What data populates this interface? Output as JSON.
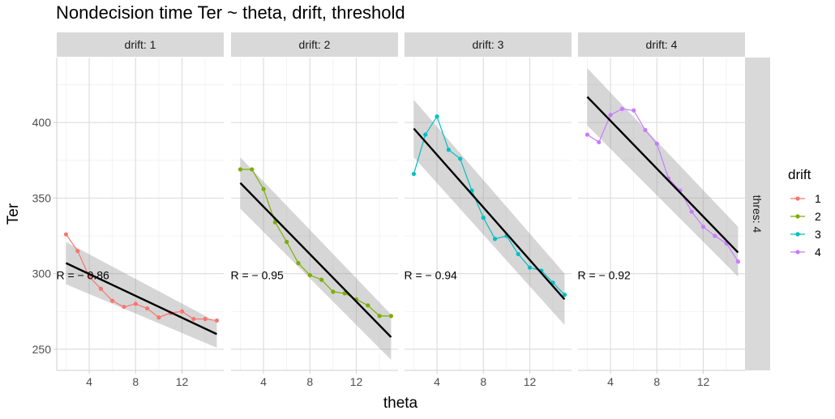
{
  "chart_data": {
    "type": "line",
    "title": "Nondecision time Ter ~ theta, drift, threshold",
    "xlabel": "theta",
    "ylabel": "Ter",
    "xlim": [
      1.2,
      15.6
    ],
    "ylim": [
      236,
      443
    ],
    "x_ticks": [
      4,
      8,
      12
    ],
    "y_ticks": [
      250,
      300,
      350,
      400
    ],
    "x_tick_labels": [
      "4",
      "8",
      "12"
    ],
    "y_tick_labels": [
      "250",
      "300",
      "350",
      "400"
    ],
    "row_strip": "thres: 4",
    "legend": {
      "title": "drift",
      "position": "right",
      "entries": [
        {
          "label": "1",
          "color": "#F8766D"
        },
        {
          "label": "2",
          "color": "#7CAE00"
        },
        {
          "label": "3",
          "color": "#00BFC4"
        },
        {
          "label": "4",
          "color": "#C77CFF"
        }
      ]
    },
    "panels": [
      {
        "strip": "drift: 1",
        "color": "#F8766D",
        "x": [
          2,
          3,
          4,
          5,
          6,
          7,
          8,
          9,
          10,
          11,
          12,
          13,
          14,
          15
        ],
        "y": [
          326,
          315,
          298,
          290,
          282,
          278,
          280,
          277,
          271,
          274,
          275,
          270,
          270,
          269
        ],
        "fit": {
          "x": [
            2,
            15
          ],
          "y": [
            307,
            260
          ],
          "band_lo": [
            293,
            251
          ],
          "band_hi": [
            321,
            268
          ]
        },
        "r_label": "R  =  − 0.86",
        "r_x": 2.0,
        "r_y": 299
      },
      {
        "strip": "drift: 2",
        "color": "#7CAE00",
        "x": [
          2,
          3,
          4,
          5,
          6,
          7,
          8,
          9,
          10,
          11,
          12,
          13,
          14,
          15
        ],
        "y": [
          369,
          369,
          356,
          334,
          321,
          307,
          299,
          296,
          288,
          287,
          283,
          279,
          272,
          272
        ],
        "fit": {
          "x": [
            2,
            15
          ],
          "y": [
            360,
            258
          ],
          "band_lo": [
            343,
            243
          ],
          "band_hi": [
            377,
            273
          ]
        },
        "r_label": "R  =  − 0.95",
        "r_x": 2.0,
        "r_y": 299
      },
      {
        "strip": "drift: 3",
        "color": "#00BFC4",
        "x": [
          2,
          3,
          4,
          5,
          6,
          7,
          8,
          9,
          10,
          11,
          12,
          13,
          14,
          15
        ],
        "y": [
          366,
          392,
          404,
          382,
          376,
          355,
          337,
          323,
          325,
          313,
          304,
          302,
          294,
          286
        ],
        "fit": {
          "x": [
            2,
            15
          ],
          "y": [
            396,
            283
          ],
          "band_lo": [
            377,
            266
          ],
          "band_hi": [
            415,
            300
          ]
        },
        "r_label": "R  =  − 0.94",
        "r_x": 2.0,
        "r_y": 299
      },
      {
        "strip": "drift: 4",
        "color": "#C77CFF",
        "x": [
          2,
          3,
          4,
          5,
          6,
          7,
          8,
          9,
          10,
          11,
          12,
          13,
          14,
          15
        ],
        "y": [
          392,
          387,
          405,
          409,
          408,
          395,
          386,
          363,
          355,
          341,
          331,
          325,
          320,
          308
        ],
        "fit": {
          "x": [
            2,
            15
          ],
          "y": [
            417,
            314
          ],
          "band_lo": [
            398,
            298
          ],
          "band_hi": [
            436,
            331
          ]
        },
        "r_label": "R  =  − 0.92",
        "r_x": 2.0,
        "r_y": 299
      }
    ]
  }
}
